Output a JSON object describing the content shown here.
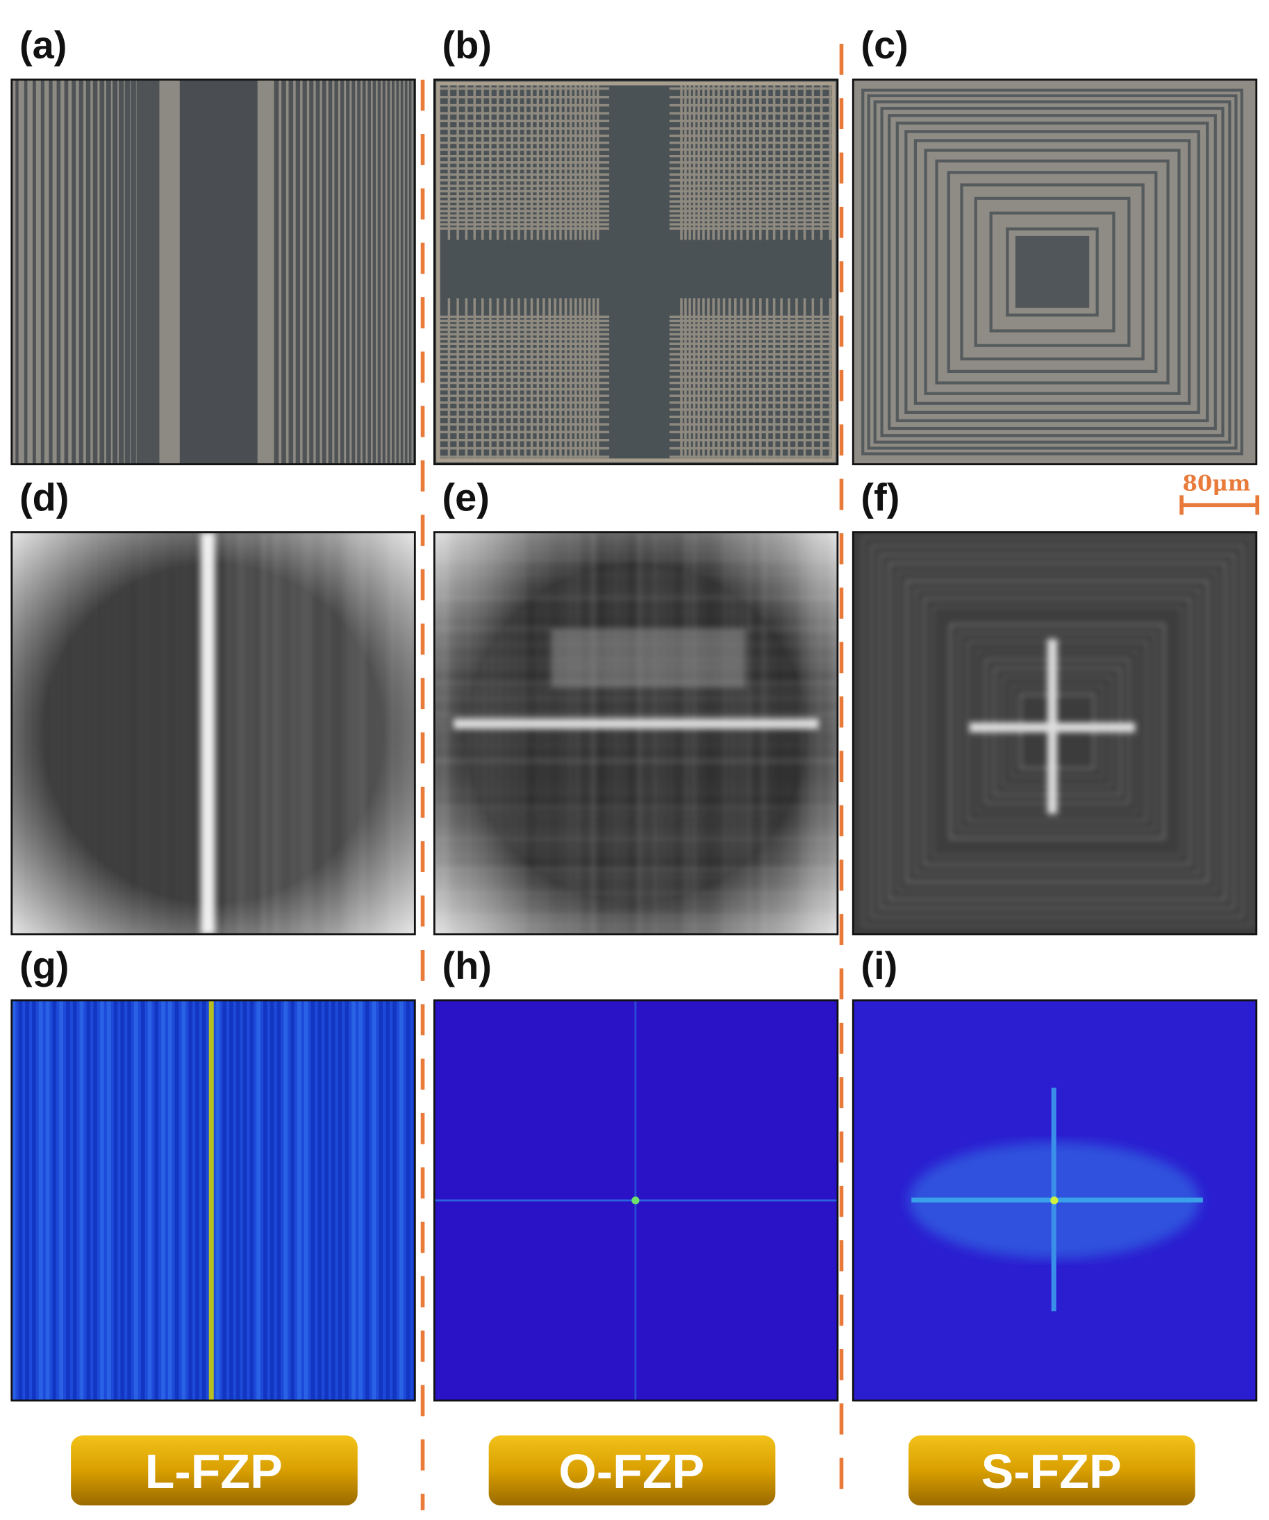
{
  "panels": [
    {
      "label": "(a)"
    },
    {
      "label": "(b)"
    },
    {
      "label": "(c)"
    },
    {
      "label": "(d)"
    },
    {
      "label": "(e)"
    },
    {
      "label": "(f)"
    },
    {
      "label": "(g)"
    },
    {
      "label": "(h)"
    },
    {
      "label": "(i)"
    }
  ],
  "buttons": [
    "L-FZP",
    "O-FZP",
    "S-FZP"
  ],
  "scale_bar": {
    "label": "80μm"
  }
}
